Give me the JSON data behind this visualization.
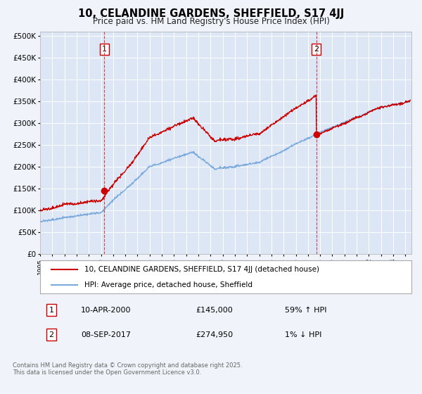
{
  "title": "10, CELANDINE GARDENS, SHEFFIELD, S17 4JJ",
  "subtitle": "Price paid vs. HM Land Registry's House Price Index (HPI)",
  "line1_label": "10, CELANDINE GARDENS, SHEFFIELD, S17 4JJ (detached house)",
  "line2_label": "HPI: Average price, detached house, Sheffield",
  "line1_color": "#cc0000",
  "line2_color": "#7aaadd",
  "background_color": "#f0f4fa",
  "plot_bg_color": "#dce6f5",
  "grid_color": "#ffffff",
  "vline_color": "#cc0000",
  "ylim": [
    0,
    510000
  ],
  "xlim_start": 1995,
  "xlim_end": 2025.5,
  "sale1_t": 2000.27,
  "sale1_price": 145000,
  "sale2_t": 2017.68,
  "sale2_price": 274950,
  "footer_text1": "Contains HM Land Registry data © Crown copyright and database right 2025.",
  "footer_text2": "This data is licensed under the Open Government Licence v3.0.",
  "legend_entry1_date": "10-APR-2000",
  "legend_entry1_price": "£145,000",
  "legend_entry1_hpi": "59% ↑ HPI",
  "legend_entry2_date": "08-SEP-2017",
  "legend_entry2_price": "£274,950",
  "legend_entry2_hpi": "1% ↓ HPI"
}
